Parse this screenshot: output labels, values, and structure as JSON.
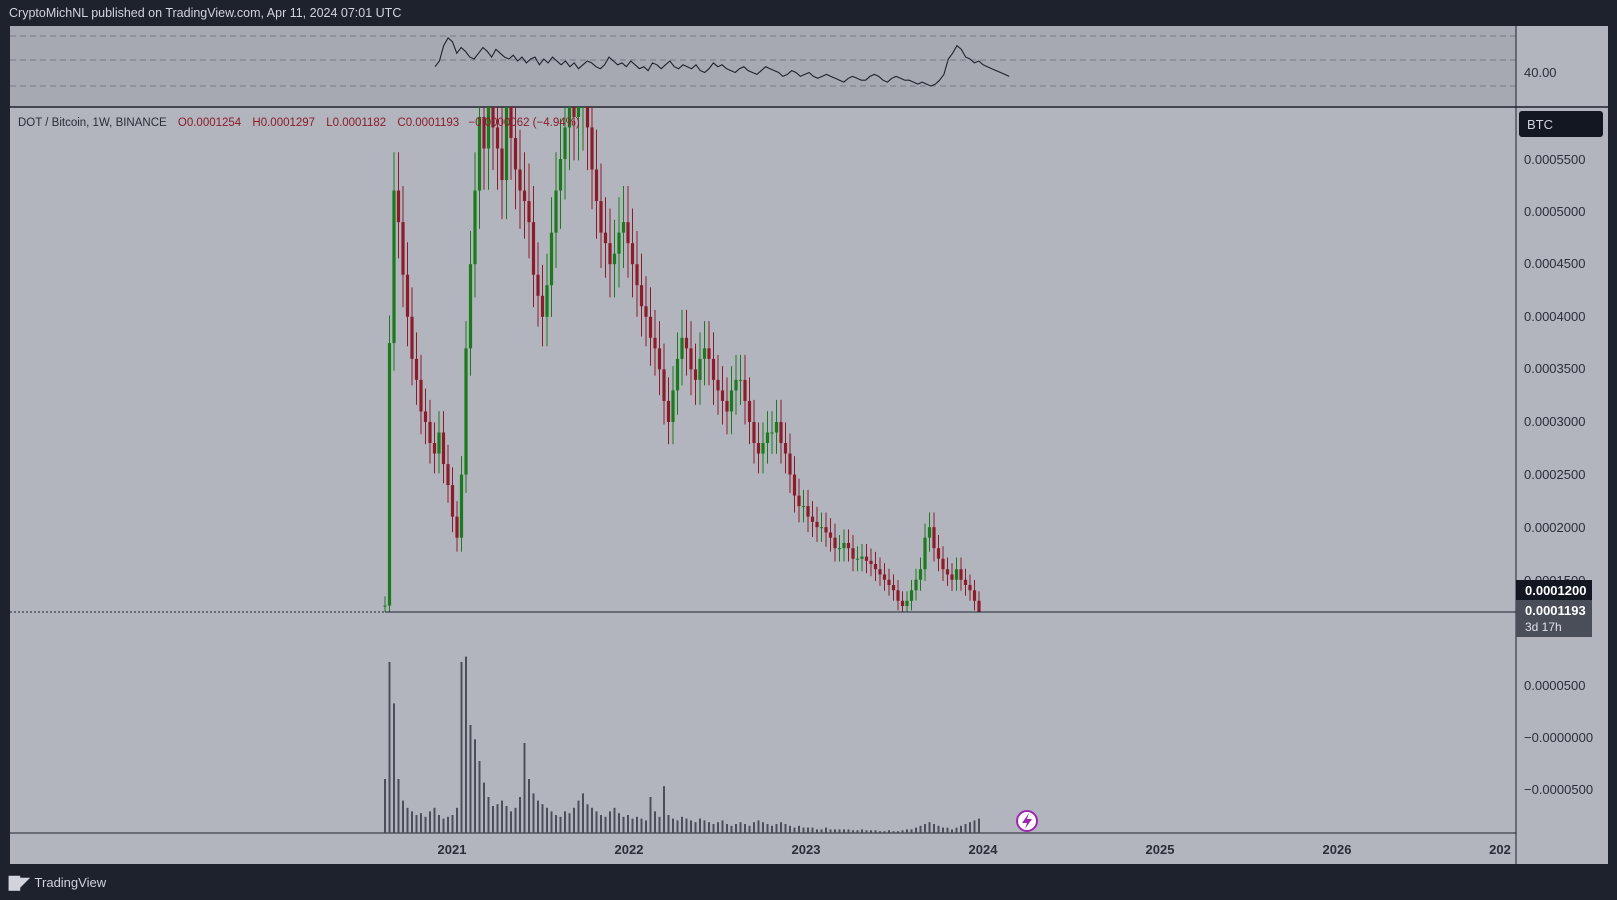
{
  "header": {
    "publisher": "CryptoMichNL published on TradingView.com, Apr 11, 2024 07:01 UTC"
  },
  "legend": {
    "symbol": "DOT / Bitcoin, 1W, BINANCE",
    "open": "O0.0001254",
    "high": "H0.0001297",
    "low": "L0.0001182",
    "close": "C0.0001193",
    "change": "−0.0000062 (−4.94%)"
  },
  "rsi_panel": {
    "level_label": "40.00"
  },
  "price_axis": {
    "currency_badge": "BTC",
    "tick_labels": [
      "0.0005500",
      "0.0005000",
      "0.0004500",
      "0.0004000",
      "0.0003500",
      "0.0003000",
      "0.0002500",
      "0.0002000",
      "0.0001500",
      "0.0000500",
      "−0.0000000",
      "−0.0000500"
    ],
    "marker_upper": "0.0001200",
    "marker_price": "0.0001193",
    "marker_countdown": "3d 17h"
  },
  "time_axis": {
    "labels": [
      "2021",
      "2022",
      "2023",
      "2024",
      "2025",
      "2026",
      "202"
    ]
  },
  "footer": {
    "brand": "TradingView"
  },
  "colors": {
    "up": "#1b7a1b",
    "down": "#8c1c2a",
    "background": "#b2b5be",
    "frame": "#1e222d"
  },
  "chart_data": {
    "type": "candlestick",
    "title": "DOT / Bitcoin, 1W, BINANCE",
    "ylabel": "BTC",
    "ylim": [
      0.00011,
      0.00058
    ],
    "x_start": "2020-08-17",
    "interval": "1W",
    "last_price": 0.0001193,
    "horizontal_line": 0.0001193,
    "close_series": [
      0.0001254,
      0.000375,
      0.00052,
      0.00049,
      0.00044,
      0.0004,
      0.00036,
      0.00034,
      0.00031,
      0.0003,
      0.00028,
      0.00027,
      0.00029,
      0.00026,
      0.00024,
      0.00021,
      0.00019,
      0.00025,
      0.00037,
      0.00045,
      0.00052,
      0.00059,
      0.00056,
      0.00061,
      0.00058,
      0.00056,
      0.00053,
      0.0006,
      0.00057,
      0.00054,
      0.00052,
      0.00051,
      0.00049,
      0.00044,
      0.00042,
      0.0004,
      0.00043,
      0.00048,
      0.00052,
      0.00055,
      0.00058,
      0.0006,
      0.00059,
      0.0006,
      0.00062,
      0.00058,
      0.00054,
      0.00051,
      0.00048,
      0.00047,
      0.00045,
      0.00046,
      0.00048,
      0.00049,
      0.00047,
      0.00045,
      0.00043,
      0.00041,
      0.0004,
      0.00038,
      0.00037,
      0.00035,
      0.00032,
      0.0003,
      0.00033,
      0.00036,
      0.00038,
      0.00037,
      0.00035,
      0.00034,
      0.00036,
      0.00037,
      0.00036,
      0.00034,
      0.00033,
      0.00032,
      0.00031,
      0.00033,
      0.00034,
      0.00034,
      0.00032,
      0.0003,
      0.00028,
      0.00027,
      0.00028,
      0.00029,
      0.00029,
      0.0003,
      0.00028,
      0.00027,
      0.00025,
      0.00023,
      0.00022,
      0.00022,
      0.00021,
      0.000205,
      0.0002,
      0.0002,
      0.000195,
      0.00019,
      0.00018,
      0.00018,
      0.000185,
      0.00018,
      0.00017,
      0.00017,
      0.000172,
      0.000168,
      0.000165,
      0.00016,
      0.000155,
      0.00015,
      0.000145,
      0.00014,
      0.00013,
      0.000125,
      0.00013,
      0.00014,
      0.00015,
      0.00016,
      0.00019,
      0.0002,
      0.00018,
      0.00017,
      0.00016,
      0.000155,
      0.00015,
      0.00016,
      0.00015,
      0.000145,
      0.00014,
      0.00013,
      0.0001193
    ],
    "volume_series": [
      30,
      95,
      72,
      30,
      18,
      14,
      12,
      10,
      11,
      9,
      12,
      14,
      10,
      8,
      9,
      10,
      14,
      95,
      98,
      60,
      52,
      40,
      28,
      20,
      15,
      16,
      18,
      15,
      12,
      14,
      20,
      50,
      30,
      22,
      18,
      16,
      14,
      12,
      10,
      9,
      12,
      11,
      14,
      18,
      22,
      16,
      14,
      12,
      10,
      9,
      12,
      14,
      11,
      9,
      10,
      8,
      9,
      8,
      7,
      20,
      12,
      9,
      26,
      10,
      8,
      7,
      9,
      8,
      7,
      6,
      8,
      7,
      6,
      5,
      6,
      7,
      5,
      4,
      5,
      6,
      5,
      4,
      6,
      7,
      6,
      5,
      4,
      5,
      6,
      5,
      4,
      3,
      4,
      3,
      3,
      3,
      2,
      2,
      3,
      2,
      2,
      2,
      2,
      2,
      1.5,
      1.5,
      2,
      1.5,
      1.5,
      1.5,
      1,
      1,
      1.5,
      1,
      1,
      1.5,
      2,
      2,
      3,
      4,
      5,
      6,
      5,
      4,
      3,
      3,
      2,
      3,
      4,
      5,
      6,
      7,
      8
    ],
    "rsi_series": [
      45,
      48,
      56,
      60,
      58,
      52,
      55,
      53,
      50,
      49,
      52,
      55,
      53,
      50,
      54,
      52,
      50,
      49,
      51,
      48,
      50,
      47,
      49,
      50,
      46,
      49,
      47,
      50,
      48,
      46,
      48,
      45,
      47,
      44,
      46,
      48,
      47,
      45,
      44,
      46,
      50,
      48,
      46,
      47,
      45,
      48,
      46,
      44,
      45,
      43,
      47,
      46,
      44,
      46,
      48,
      45,
      44,
      46,
      45,
      44,
      46,
      43,
      42,
      44,
      47,
      45,
      46,
      44,
      43,
      42,
      44,
      45,
      43,
      42,
      41,
      43,
      45,
      44,
      43,
      42,
      40,
      41,
      43,
      42,
      40,
      41,
      42,
      40,
      39,
      40,
      41,
      40,
      39,
      38,
      37,
      39,
      40,
      39,
      38,
      38,
      40,
      41,
      40,
      38,
      37,
      39,
      40,
      39,
      38,
      38,
      37,
      36,
      37,
      36,
      35,
      36,
      38,
      41,
      49,
      52,
      56,
      54,
      50,
      49,
      47,
      48,
      46,
      45,
      44,
      43,
      42,
      41,
      40
    ]
  }
}
